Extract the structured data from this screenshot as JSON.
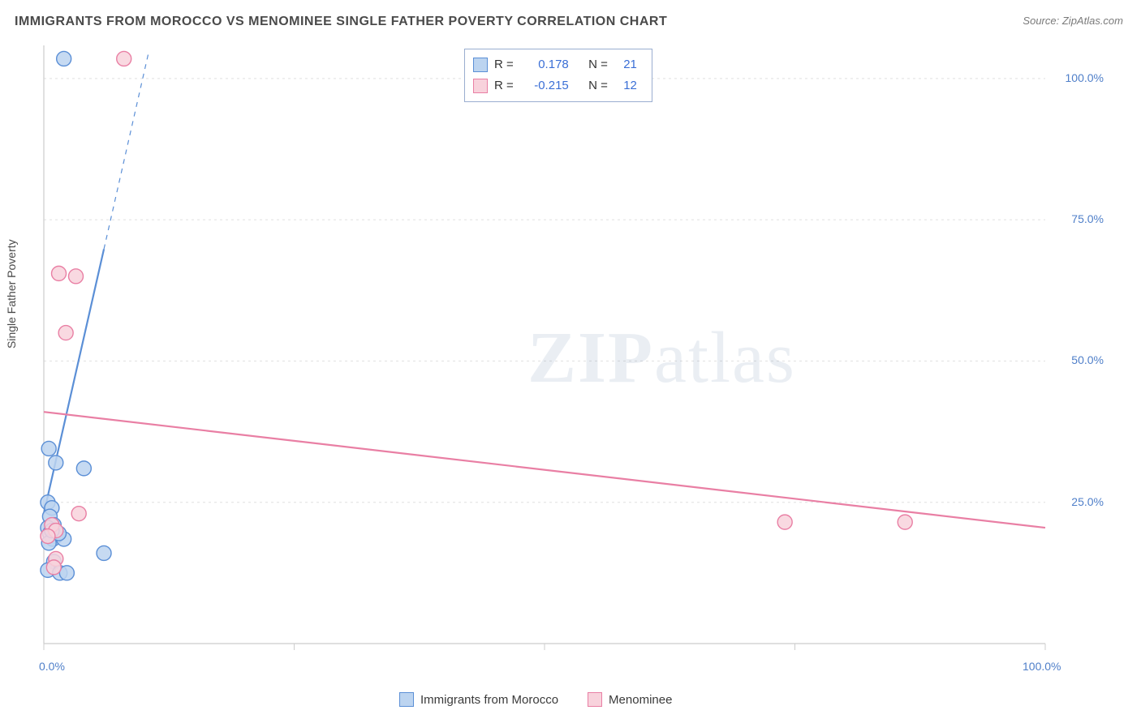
{
  "title": "IMMIGRANTS FROM MOROCCO VS MENOMINEE SINGLE FATHER POVERTY CORRELATION CHART",
  "source_label": "Source:",
  "source_value": "ZipAtlas.com",
  "watermark": "ZIPatlas",
  "y_axis_label": "Single Father Poverty",
  "chart": {
    "type": "scatter",
    "xlim": [
      0,
      100
    ],
    "ylim": [
      0,
      105
    ],
    "x_ticks": [
      0,
      25,
      50,
      75,
      100
    ],
    "y_ticks": [
      25,
      50,
      75,
      100
    ],
    "x_tick_labels": [
      "0.0%",
      "",
      "",
      "",
      "100.0%"
    ],
    "y_tick_labels": [
      "25.0%",
      "50.0%",
      "75.0%",
      "100.0%"
    ],
    "grid_color": "#e0e0e0",
    "axis_color": "#cccccc",
    "background_color": "#ffffff",
    "marker_radius": 9,
    "marker_stroke_width": 1.4,
    "trend_line_width": 2.2,
    "series": [
      {
        "name": "Immigrants from Morocco",
        "fill": "#bcd4f0",
        "stroke": "#5b8fd6",
        "points": [
          [
            2.0,
            103.5
          ],
          [
            0.5,
            34.5
          ],
          [
            1.2,
            32.0
          ],
          [
            4.0,
            31.0
          ],
          [
            0.4,
            25.0
          ],
          [
            0.8,
            24.0
          ],
          [
            0.6,
            22.5
          ],
          [
            1.0,
            21.0
          ],
          [
            0.4,
            20.5
          ],
          [
            0.6,
            19.5
          ],
          [
            1.2,
            19.0
          ],
          [
            0.9,
            18.5
          ],
          [
            2.0,
            18.5
          ],
          [
            0.5,
            17.8
          ],
          [
            6.0,
            16.0
          ],
          [
            1.0,
            14.5
          ],
          [
            0.4,
            13.0
          ],
          [
            1.6,
            12.5
          ],
          [
            2.3,
            12.5
          ],
          [
            1.5,
            19.5
          ],
          [
            0.8,
            20.0
          ]
        ],
        "trend": {
          "slope": 7.8,
          "intercept": 23.0,
          "x_solid_max": 6.0
        },
        "r_value": "0.178",
        "n_value": "21"
      },
      {
        "name": "Menominee",
        "fill": "#f8d2dc",
        "stroke": "#e97fa4",
        "points": [
          [
            8.0,
            103.5
          ],
          [
            1.5,
            65.5
          ],
          [
            3.2,
            65.0
          ],
          [
            2.2,
            55.0
          ],
          [
            3.5,
            23.0
          ],
          [
            0.8,
            21.0
          ],
          [
            1.2,
            20.0
          ],
          [
            0.4,
            19.0
          ],
          [
            1.2,
            15.0
          ],
          [
            1.0,
            13.5
          ],
          [
            74.0,
            21.5
          ],
          [
            86.0,
            21.5
          ]
        ],
        "trend": {
          "slope": -0.205,
          "intercept": 41.0,
          "x_solid_max": 100
        },
        "r_value": "-0.215",
        "n_value": "12"
      }
    ]
  },
  "stat_legend": {
    "r_label": "R =",
    "n_label": "N ="
  },
  "bottom_legend": {
    "items": [
      "Immigrants from Morocco",
      "Menominee"
    ]
  },
  "colors": {
    "tick_label": "#4f7fc9",
    "title": "#4a4a4a"
  }
}
